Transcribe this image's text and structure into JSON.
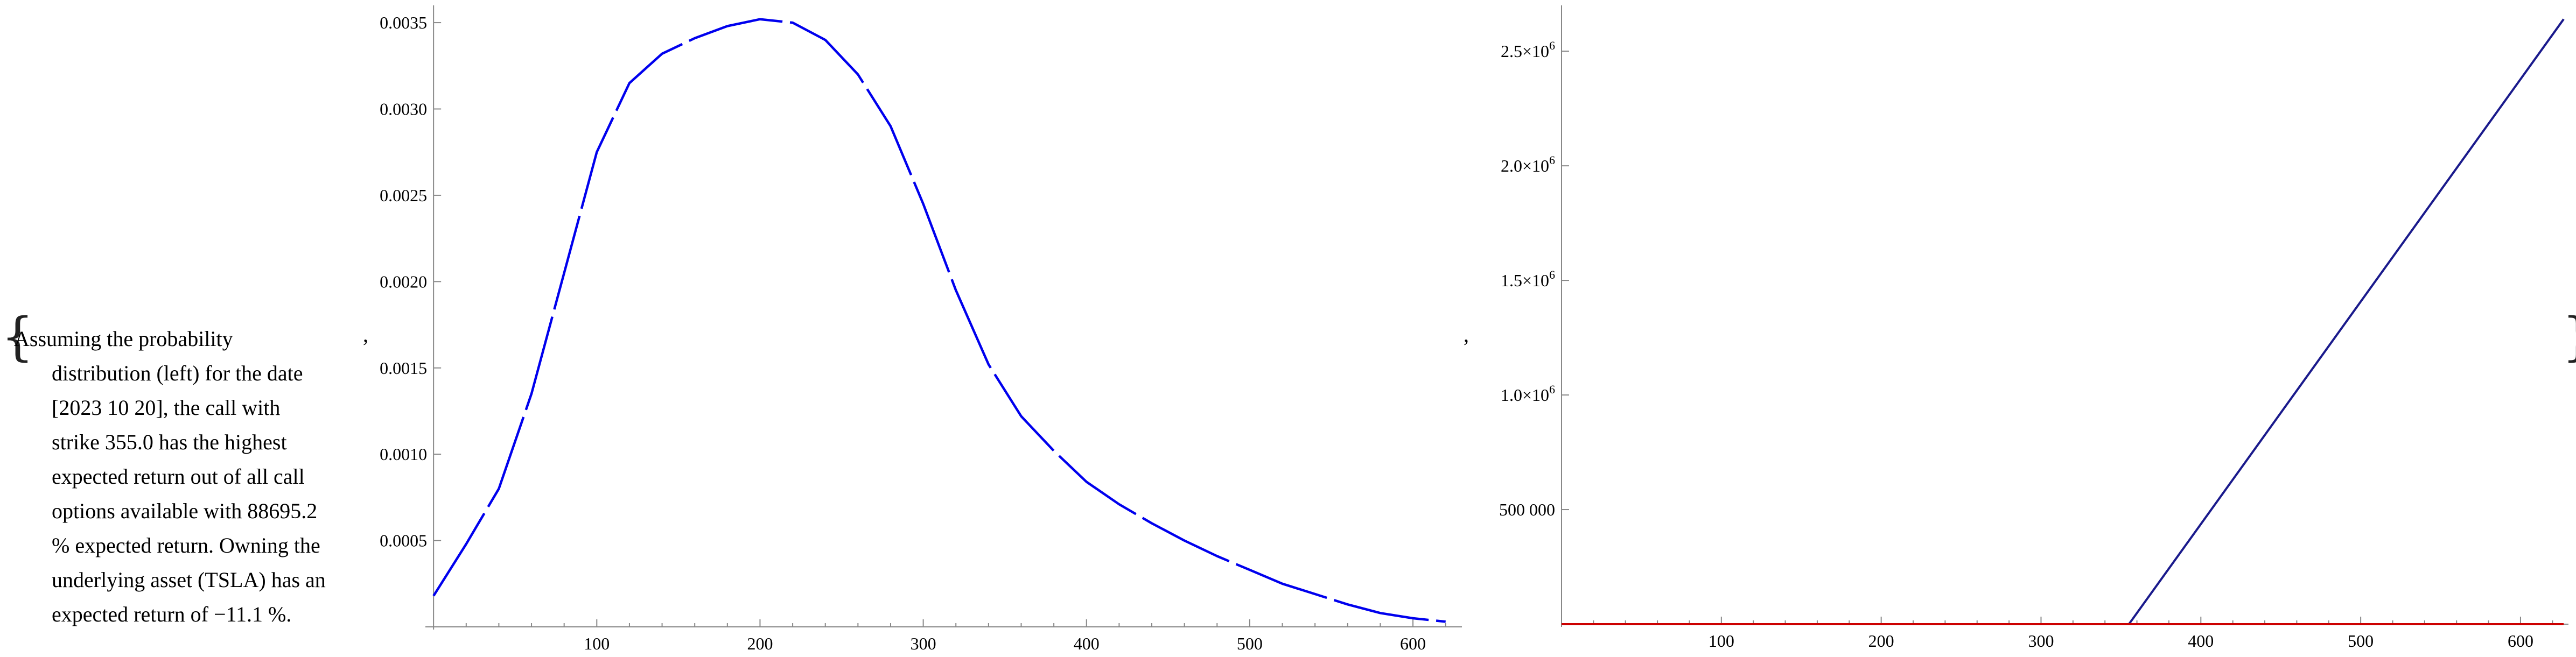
{
  "caption": {
    "lines": [
      "Assuming the probability",
      "distribution (left) for the date",
      "[2023 10 20], the call with",
      "strike 355.0 has the highest",
      "expected return out of all call",
      "options available with 88695.2",
      "% expected return. Owning the",
      "underlying asset (TSLA) has an",
      "expected return of −11.1 %."
    ]
  },
  "punctuation": {
    "open": "{",
    "close": "}",
    "comma": ","
  },
  "chart_data": [
    {
      "type": "line",
      "title": "",
      "xlabel": "",
      "ylabel": "",
      "xlim": [
        -5,
        630
      ],
      "ylim": [
        0,
        0.0036
      ],
      "x_ticks": [
        100,
        200,
        300,
        400,
        500,
        600
      ],
      "x_tick_labels": [
        "100",
        "200",
        "300",
        "400",
        "500",
        "600"
      ],
      "y_ticks": [
        0.0005,
        0.001,
        0.0015,
        0.002,
        0.0025,
        0.003,
        0.0035
      ],
      "y_tick_labels": [
        "0.0005",
        "0.0010",
        "0.0015",
        "0.0020",
        "0.0025",
        "0.0030",
        "0.0035"
      ],
      "grid": false,
      "series": [
        {
          "color": "#0000ee",
          "points": [
            [
              0,
              0.00018
            ],
            [
              20,
              0.00048
            ],
            [
              40,
              0.0008
            ],
            [
              60,
              0.00135
            ],
            [
              80,
              0.00205
            ],
            [
              100,
              0.00275
            ],
            [
              120,
              0.00315
            ],
            [
              140,
              0.00332
            ],
            [
              160,
              0.00341
            ],
            [
              180,
              0.00348
            ],
            [
              200,
              0.00352
            ],
            [
              220,
              0.0035
            ],
            [
              240,
              0.0034
            ],
            [
              260,
              0.0032
            ],
            [
              280,
              0.0029
            ],
            [
              300,
              0.00245
            ],
            [
              320,
              0.00195
            ],
            [
              340,
              0.00152
            ],
            [
              360,
              0.00122
            ],
            [
              380,
              0.00102
            ],
            [
              400,
              0.00084
            ],
            [
              420,
              0.00071
            ],
            [
              440,
              0.0006
            ],
            [
              460,
              0.0005
            ],
            [
              480,
              0.00041
            ],
            [
              500,
              0.00033
            ],
            [
              520,
              0.00025
            ],
            [
              540,
              0.00019
            ],
            [
              560,
              0.00013
            ],
            [
              580,
              8e-05
            ],
            [
              600,
              5e-05
            ],
            [
              620,
              3e-05
            ]
          ]
        }
      ]
    },
    {
      "type": "line",
      "title": "",
      "xlabel": "",
      "ylabel": "",
      "xlim": [
        0,
        630
      ],
      "ylim": [
        0,
        2700000
      ],
      "x_ticks": [
        100,
        200,
        300,
        400,
        500,
        600
      ],
      "x_tick_labels": [
        "100",
        "200",
        "300",
        "400",
        "500",
        "600"
      ],
      "y_ticks": [
        500000,
        1000000,
        1500000,
        2000000,
        2500000
      ],
      "y_tick_labels": [
        {
          "base": "500 000",
          "exp": ""
        },
        {
          "base": "1.0×10",
          "exp": "6"
        },
        {
          "base": "1.5×10",
          "exp": "6"
        },
        {
          "base": "2.0×10",
          "exp": "6"
        },
        {
          "base": "2.5×10",
          "exp": "6"
        }
      ],
      "grid": false,
      "series": [
        {
          "color": "#1a1a8c",
          "points": [
            [
              0,
              0
            ],
            [
              355,
              0
            ],
            [
              627,
              2640000
            ]
          ]
        },
        {
          "color": "#cc0000",
          "points": [
            [
              0,
              0
            ],
            [
              627,
              0
            ]
          ]
        }
      ]
    }
  ]
}
